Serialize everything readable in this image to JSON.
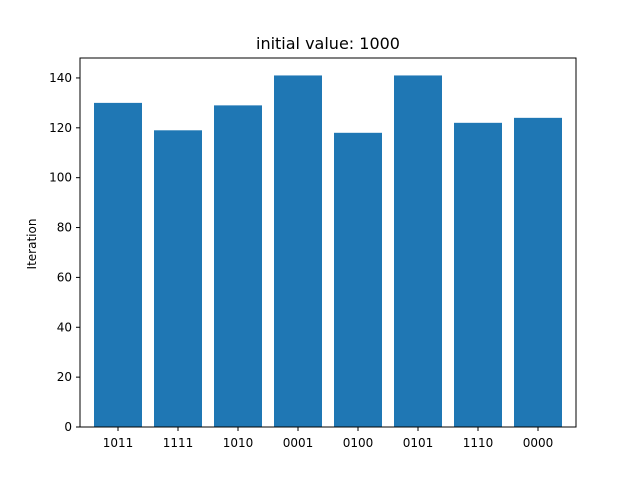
{
  "chart_data": {
    "type": "bar",
    "title": "initial value: 1000",
    "xlabel": "",
    "ylabel": "Iteration",
    "categories": [
      "1011",
      "1111",
      "1010",
      "0001",
      "0100",
      "0101",
      "1110",
      "0000"
    ],
    "values": [
      130,
      119,
      129,
      141,
      118,
      141,
      122,
      124
    ],
    "ylim": [
      0,
      148
    ],
    "yticks": [
      0,
      20,
      40,
      60,
      80,
      100,
      120,
      140
    ],
    "bar_color": "#1f77b4",
    "grid": false,
    "legend": false
  }
}
